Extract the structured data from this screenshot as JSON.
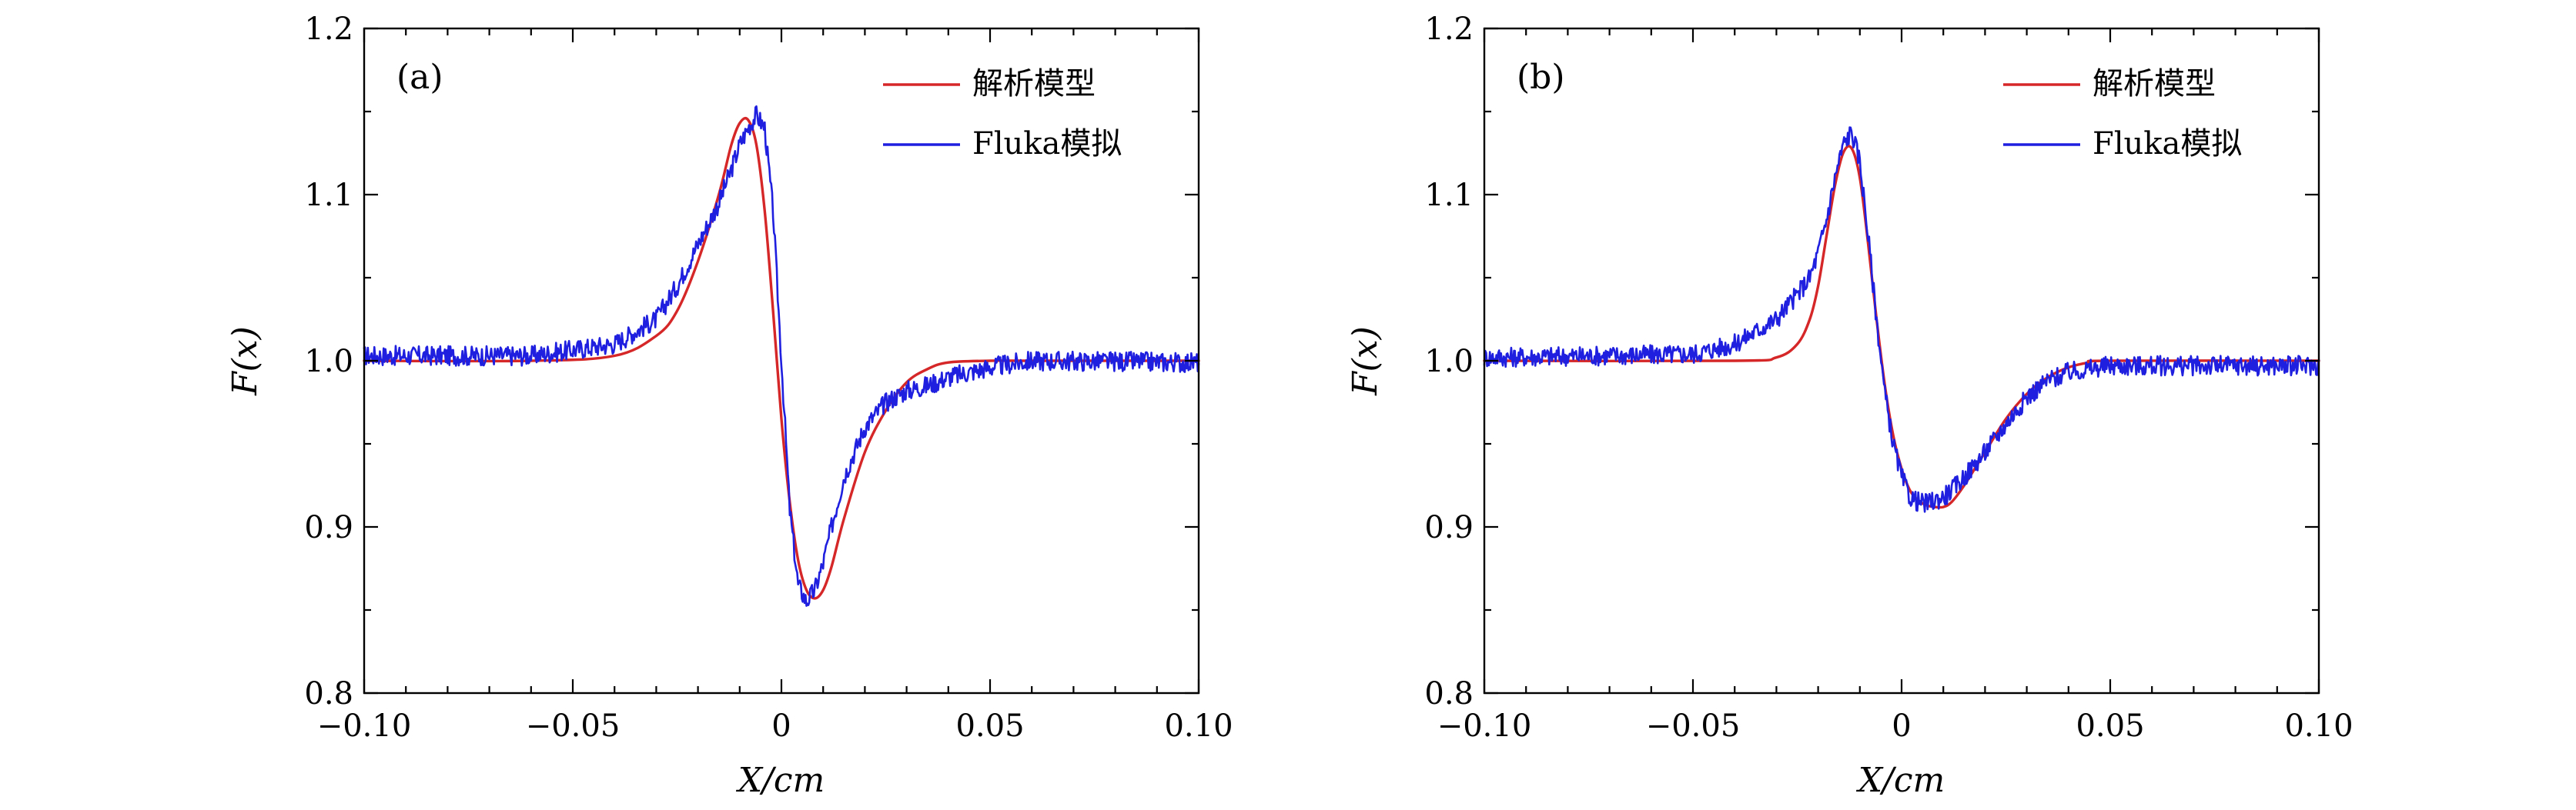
{
  "chart_data": [
    {
      "type": "line",
      "panel_label": "(a)",
      "xlabel": "X/cm",
      "ylabel": "F(x)",
      "xlim": [
        -0.1,
        0.1
      ],
      "ylim": [
        0.8,
        1.2
      ],
      "x_ticks": [
        -0.1,
        -0.05,
        0,
        0.05,
        0.1
      ],
      "x_tick_labels": [
        "−0.10",
        "−0.05",
        "0",
        "0.05",
        "0.10"
      ],
      "y_ticks": [
        0.8,
        0.9,
        1.0,
        1.1,
        1.2
      ],
      "y_tick_labels": [
        "0.8",
        "0.9",
        "1.0",
        "1.1",
        "1.2"
      ],
      "legend_position": "top-right",
      "series": [
        {
          "name": "解析模型",
          "color": "#d62728",
          "x": [
            -0.1,
            -0.06,
            -0.04,
            -0.03,
            -0.025,
            -0.02,
            -0.015,
            -0.012,
            -0.01,
            -0.008,
            -0.006,
            -0.004,
            -0.002,
            0,
            0.002,
            0.004,
            0.006,
            0.008,
            0.01,
            0.012,
            0.015,
            0.02,
            0.025,
            0.03,
            0.035,
            0.04,
            0.05,
            0.06,
            0.1
          ],
          "values": [
            1.0,
            1.0,
            1.003,
            1.015,
            1.03,
            1.06,
            1.1,
            1.13,
            1.143,
            1.145,
            1.13,
            1.09,
            1.03,
            0.965,
            0.915,
            0.88,
            0.862,
            0.857,
            0.862,
            0.876,
            0.905,
            0.945,
            0.97,
            0.987,
            0.995,
            0.999,
            1.0,
            1.0,
            1.0
          ]
        },
        {
          "name": "Fluka模拟",
          "color": "#1f1fe0",
          "x": [
            -0.1,
            -0.06,
            -0.04,
            -0.03,
            -0.025,
            -0.02,
            -0.015,
            -0.012,
            -0.01,
            -0.008,
            -0.006,
            -0.004,
            -0.002,
            0,
            0.002,
            0.004,
            0.006,
            0.008,
            0.01,
            0.012,
            0.015,
            0.02,
            0.025,
            0.03,
            0.035,
            0.04,
            0.05,
            0.06,
            0.1
          ],
          "values": [
            1.003,
            1.003,
            1.01,
            1.025,
            1.045,
            1.07,
            1.095,
            1.115,
            1.13,
            1.14,
            1.148,
            1.14,
            1.09,
            1.0,
            0.91,
            0.865,
            0.855,
            0.862,
            0.878,
            0.9,
            0.93,
            0.96,
            0.975,
            0.982,
            0.985,
            0.99,
            0.996,
            1.0,
            0.999
          ]
        }
      ]
    },
    {
      "type": "line",
      "panel_label": "(b)",
      "xlabel": "X/cm",
      "ylabel": "F(x)",
      "xlim": [
        -0.1,
        0.1
      ],
      "ylim": [
        0.8,
        1.2
      ],
      "x_ticks": [
        -0.1,
        -0.05,
        0,
        0.05,
        0.1
      ],
      "x_tick_labels": [
        "−0.10",
        "−0.05",
        "0",
        "0.05",
        "0.10"
      ],
      "y_ticks": [
        0.8,
        0.9,
        1.0,
        1.1,
        1.2
      ],
      "y_tick_labels": [
        "0.8",
        "0.9",
        "1.0",
        "1.1",
        "1.2"
      ],
      "legend_position": "top-right",
      "series": [
        {
          "name": "解析模型",
          "color": "#d62728",
          "x": [
            -0.1,
            -0.04,
            -0.03,
            -0.025,
            -0.022,
            -0.02,
            -0.018,
            -0.016,
            -0.014,
            -0.012,
            -0.01,
            -0.008,
            -0.006,
            -0.004,
            -0.002,
            0,
            0.002,
            0.004,
            0.006,
            0.008,
            0.01,
            0.012,
            0.015,
            0.02,
            0.025,
            0.03,
            0.035,
            0.04,
            0.045,
            0.05,
            0.1
          ],
          "values": [
            1.0,
            1.0,
            1.002,
            1.01,
            1.025,
            1.045,
            1.075,
            1.105,
            1.125,
            1.128,
            1.11,
            1.07,
            1.025,
            0.985,
            0.955,
            0.935,
            0.922,
            0.916,
            0.913,
            0.912,
            0.912,
            0.915,
            0.925,
            0.945,
            0.965,
            0.98,
            0.99,
            0.996,
            0.999,
            1.0,
            1.0
          ]
        },
        {
          "name": "Fluka模拟",
          "color": "#1f1fe0",
          "x": [
            -0.1,
            -0.05,
            -0.04,
            -0.03,
            -0.025,
            -0.022,
            -0.02,
            -0.018,
            -0.016,
            -0.014,
            -0.012,
            -0.01,
            -0.008,
            -0.006,
            -0.004,
            -0.002,
            0,
            0.002,
            0.004,
            0.006,
            0.008,
            0.01,
            0.012,
            0.015,
            0.02,
            0.025,
            0.03,
            0.035,
            0.04,
            0.05,
            0.1
          ],
          "values": [
            1.002,
            1.004,
            1.01,
            1.025,
            1.04,
            1.05,
            1.065,
            1.085,
            1.11,
            1.13,
            1.138,
            1.12,
            1.075,
            1.025,
            0.98,
            0.95,
            0.93,
            0.918,
            0.915,
            0.914,
            0.916,
            0.918,
            0.922,
            0.93,
            0.945,
            0.962,
            0.978,
            0.988,
            0.993,
            0.997,
            0.997
          ]
        }
      ]
    }
  ]
}
